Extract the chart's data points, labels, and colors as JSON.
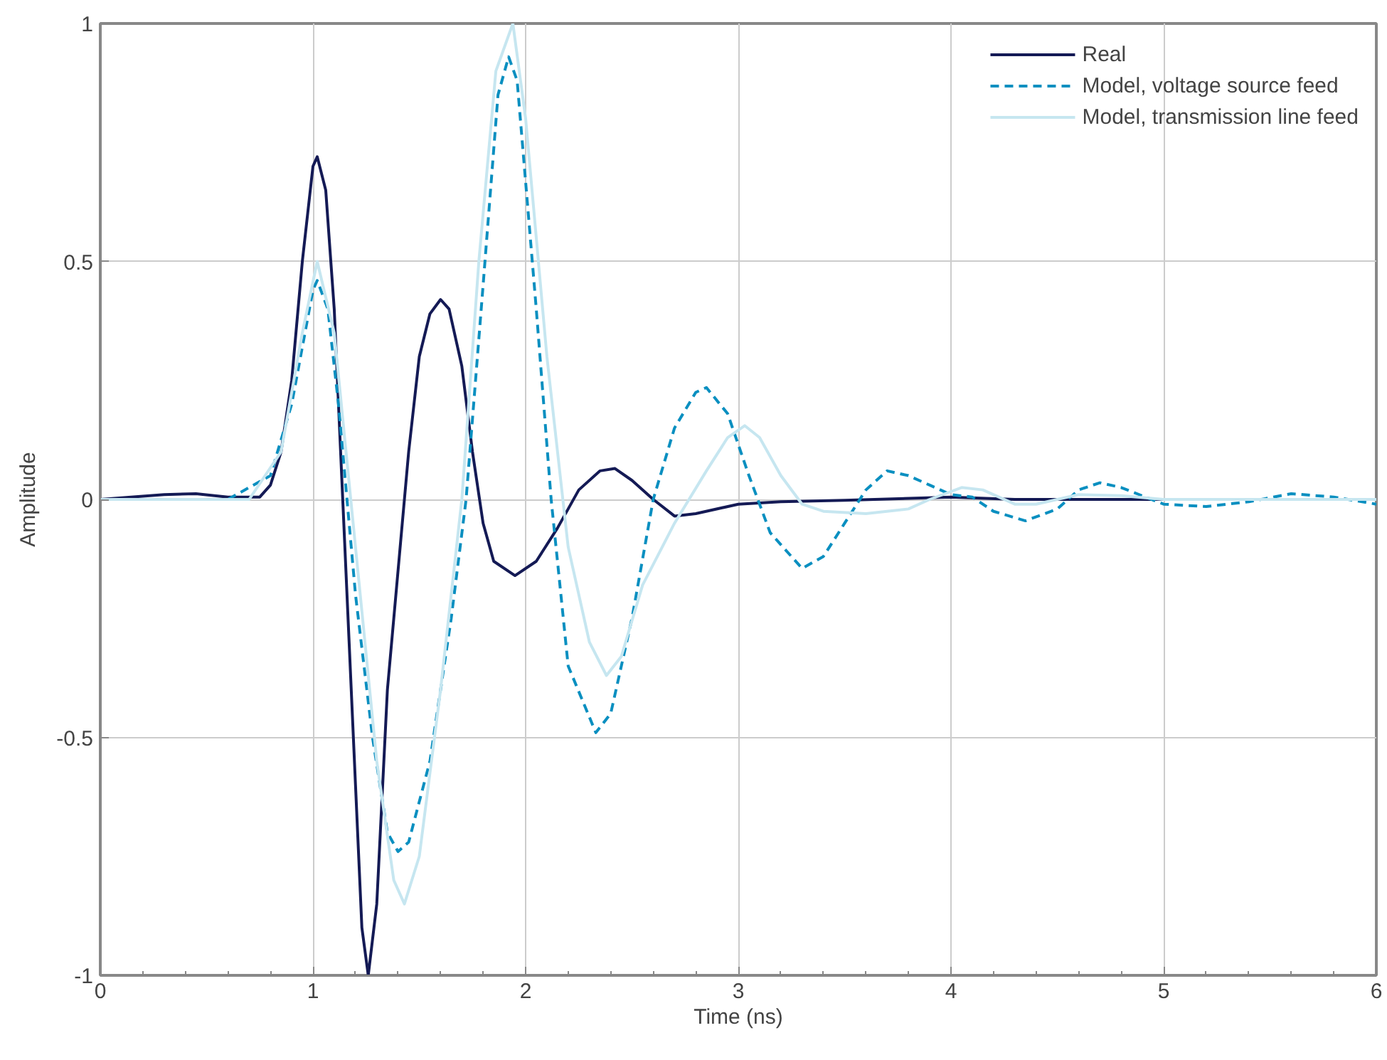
{
  "chart_data": {
    "type": "line",
    "xlabel": "Time (ns)",
    "ylabel": "Amplitude",
    "xlim": [
      0,
      6
    ],
    "ylim": [
      -1,
      1
    ],
    "xticks": [
      0,
      1,
      2,
      3,
      4,
      5,
      6
    ],
    "yticks": [
      -1,
      -0.5,
      0,
      0.5,
      1
    ],
    "grid": true,
    "legend": "top right",
    "marker": "none",
    "series": [
      {
        "name": "Real",
        "color": "#141a55",
        "line_style": "solid",
        "x": [
          0,
          0.3,
          0.45,
          0.6,
          0.75,
          0.8,
          0.85,
          0.9,
          0.95,
          1.0,
          1.02,
          1.06,
          1.1,
          1.13,
          1.17,
          1.2,
          1.23,
          1.26,
          1.3,
          1.35,
          1.4,
          1.45,
          1.5,
          1.55,
          1.6,
          1.64,
          1.7,
          1.75,
          1.8,
          1.85,
          1.95,
          2.05,
          2.15,
          2.25,
          2.35,
          2.42,
          2.5,
          2.6,
          2.7,
          2.8,
          3.0,
          3.2,
          3.5,
          4.0,
          4.3,
          4.7,
          5.0,
          5.2
        ],
        "values": [
          0,
          0.01,
          0.012,
          0.005,
          0.005,
          0.03,
          0.1,
          0.25,
          0.5,
          0.7,
          0.72,
          0.65,
          0.4,
          0.1,
          -0.3,
          -0.6,
          -0.9,
          -1.0,
          -0.85,
          -0.4,
          -0.15,
          0.1,
          0.3,
          0.39,
          0.42,
          0.4,
          0.28,
          0.1,
          -0.05,
          -0.13,
          -0.16,
          -0.13,
          -0.06,
          0.02,
          0.06,
          0.065,
          0.04,
          0.0,
          -0.035,
          -0.03,
          -0.01,
          -0.005,
          -0.002,
          0.005,
          0.0,
          0.0,
          0.0,
          0.0
        ]
      },
      {
        "name": "Model, voltage source feed",
        "color": "#0a8fc0",
        "line_style": "dashed",
        "x": [
          0,
          0.6,
          0.8,
          0.9,
          0.95,
          1.0,
          1.02,
          1.07,
          1.12,
          1.2,
          1.28,
          1.35,
          1.4,
          1.45,
          1.55,
          1.65,
          1.72,
          1.8,
          1.87,
          1.92,
          1.96,
          2.05,
          2.12,
          2.2,
          2.33,
          2.4,
          2.5,
          2.6,
          2.7,
          2.8,
          2.85,
          2.95,
          3.05,
          3.15,
          3.3,
          3.4,
          3.5,
          3.6,
          3.7,
          3.8,
          3.9,
          4.0,
          4.1,
          4.2,
          4.35,
          4.5,
          4.6,
          4.7,
          4.8,
          5.0,
          5.2,
          5.4,
          5.6,
          5.8,
          6.0
        ],
        "values": [
          0,
          0,
          0.05,
          0.2,
          0.32,
          0.44,
          0.46,
          0.4,
          0.2,
          -0.2,
          -0.5,
          -0.7,
          -0.74,
          -0.72,
          -0.55,
          -0.25,
          0.0,
          0.45,
          0.85,
          0.93,
          0.88,
          0.4,
          0.0,
          -0.35,
          -0.49,
          -0.45,
          -0.25,
          0.0,
          0.15,
          0.225,
          0.235,
          0.18,
          0.05,
          -0.07,
          -0.145,
          -0.12,
          -0.05,
          0.02,
          0.06,
          0.05,
          0.03,
          0.01,
          0.005,
          -0.025,
          -0.045,
          -0.02,
          0.02,
          0.035,
          0.025,
          -0.01,
          -0.015,
          -0.005,
          0.012,
          0.005,
          -0.01
        ]
      },
      {
        "name": "Model, transmission line feed",
        "color": "#c6e6f0",
        "line_style": "solid",
        "x": [
          0,
          0.7,
          0.85,
          0.95,
          1.02,
          1.1,
          1.2,
          1.3,
          1.38,
          1.43,
          1.5,
          1.6,
          1.7,
          1.78,
          1.86,
          1.94,
          2.0,
          2.1,
          2.2,
          2.3,
          2.38,
          2.45,
          2.55,
          2.7,
          2.85,
          2.95,
          3.03,
          3.1,
          3.2,
          3.3,
          3.4,
          3.6,
          3.8,
          3.9,
          4.05,
          4.15,
          4.3,
          4.4,
          4.6,
          4.8,
          5.0,
          5.5,
          6.0
        ],
        "values": [
          0,
          0,
          0.1,
          0.35,
          0.5,
          0.35,
          -0.1,
          -0.55,
          -0.8,
          -0.85,
          -0.75,
          -0.4,
          0.0,
          0.5,
          0.9,
          1.0,
          0.8,
          0.3,
          -0.1,
          -0.3,
          -0.37,
          -0.33,
          -0.18,
          -0.05,
          0.06,
          0.13,
          0.155,
          0.13,
          0.05,
          -0.01,
          -0.025,
          -0.03,
          -0.02,
          0.0,
          0.025,
          0.02,
          -0.01,
          -0.01,
          0.01,
          0.008,
          0.0,
          0.0,
          0.0
        ]
      }
    ]
  }
}
